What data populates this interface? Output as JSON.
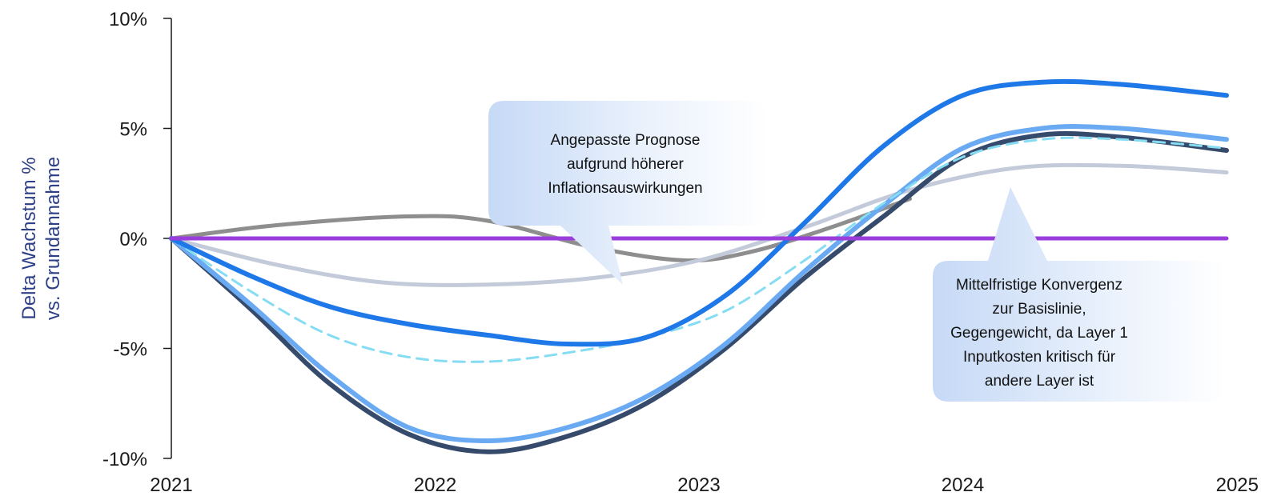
{
  "chart_data": {
    "type": "line",
    "title": "",
    "xlabel": "",
    "ylabel_lines": [
      "Delta Wachstum %",
      "vs. Grundannahme"
    ],
    "xlim": [
      2021,
      2025
    ],
    "ylim": [
      -10,
      10
    ],
    "x_ticks": [
      2021,
      2022,
      2023,
      2024,
      2025
    ],
    "x_tick_labels": [
      "2021",
      "2022",
      "2023",
      "2024",
      "2025"
    ],
    "y_ticks": [
      10,
      5,
      0,
      -5,
      -10
    ],
    "y_tick_labels": [
      "10%",
      "5%",
      "0%",
      "-5%",
      "-10%"
    ],
    "grid": false,
    "legend": "none",
    "series": [
      {
        "color": "#8e8e8e",
        "width": 5,
        "dash": "",
        "x": [
          2021,
          2021.4,
          2021.9,
          2022.2,
          2022.6,
          2022.95,
          2023.2,
          2023.5,
          2023.8
        ],
        "y": [
          0,
          0.6,
          1.0,
          0.8,
          -0.4,
          -1.0,
          -0.6,
          0.5,
          1.8
        ]
      },
      {
        "color": "#c3cad9",
        "width": 5,
        "dash": "",
        "x": [
          2021,
          2021.4,
          2021.8,
          2022.2,
          2022.6,
          2023.0,
          2023.4,
          2023.8,
          2024.2,
          2024.6,
          2025
        ],
        "y": [
          0,
          -1.2,
          -2.0,
          -2.1,
          -1.8,
          -1.0,
          0.5,
          2.2,
          3.2,
          3.3,
          3.0
        ]
      },
      {
        "color": "#364a6c",
        "width": 6,
        "dash": "",
        "x": [
          2021,
          2021.3,
          2021.6,
          2021.9,
          2022.2,
          2022.5,
          2022.8,
          2023.1,
          2023.4,
          2023.7,
          2024.0,
          2024.3,
          2024.6,
          2025
        ],
        "y": [
          0,
          -3.2,
          -6.6,
          -8.9,
          -9.7,
          -9.0,
          -7.5,
          -5.0,
          -1.8,
          1.0,
          3.7,
          4.7,
          4.6,
          4.0
        ]
      },
      {
        "color": "#6aaaf2",
        "width": 6,
        "dash": "",
        "x": [
          2021,
          2021.3,
          2021.6,
          2021.9,
          2022.2,
          2022.5,
          2022.8,
          2023.1,
          2023.4,
          2023.7,
          2024.0,
          2024.3,
          2024.6,
          2025
        ],
        "y": [
          0,
          -3.0,
          -6.2,
          -8.6,
          -9.2,
          -8.6,
          -7.2,
          -4.8,
          -1.5,
          1.5,
          4.1,
          5.0,
          5.0,
          4.5
        ]
      },
      {
        "color": "#86dcf2",
        "width": 3,
        "dash": "14 9",
        "x": [
          2021,
          2021.3,
          2021.6,
          2021.9,
          2022.2,
          2022.5,
          2022.8,
          2023.1,
          2023.4,
          2023.7,
          2024.0,
          2024.3,
          2024.6,
          2025
        ],
        "y": [
          0,
          -2.4,
          -4.4,
          -5.4,
          -5.6,
          -5.2,
          -4.5,
          -3.3,
          -1.0,
          1.6,
          3.7,
          4.5,
          4.5,
          4.1
        ]
      },
      {
        "color": "#1f78e8",
        "width": 6,
        "dash": "",
        "x": [
          2021,
          2021.3,
          2021.6,
          2021.9,
          2022.2,
          2022.5,
          2022.8,
          2023.1,
          2023.4,
          2023.7,
          2024.0,
          2024.3,
          2024.6,
          2025
        ],
        "y": [
          0,
          -1.7,
          -3.1,
          -3.9,
          -4.4,
          -4.8,
          -4.5,
          -2.6,
          0.7,
          4.2,
          6.5,
          7.1,
          7.0,
          6.5
        ]
      },
      {
        "color": "#9b3ddb",
        "width": 5,
        "dash": "",
        "x": [
          2021,
          2025
        ],
        "y": [
          0,
          0
        ]
      }
    ],
    "annotations": [
      {
        "text": [
          "Angepasste Prognose",
          "aufgrund höherer",
          "Inflationsauswirkungen"
        ]
      },
      {
        "text": [
          "Mittelfristige Konvergenz",
          "zur Basislinie,",
          "Gegengewicht, da Layer 1",
          "Inputkosten kritisch für",
          "andere Layer ist"
        ]
      }
    ]
  }
}
